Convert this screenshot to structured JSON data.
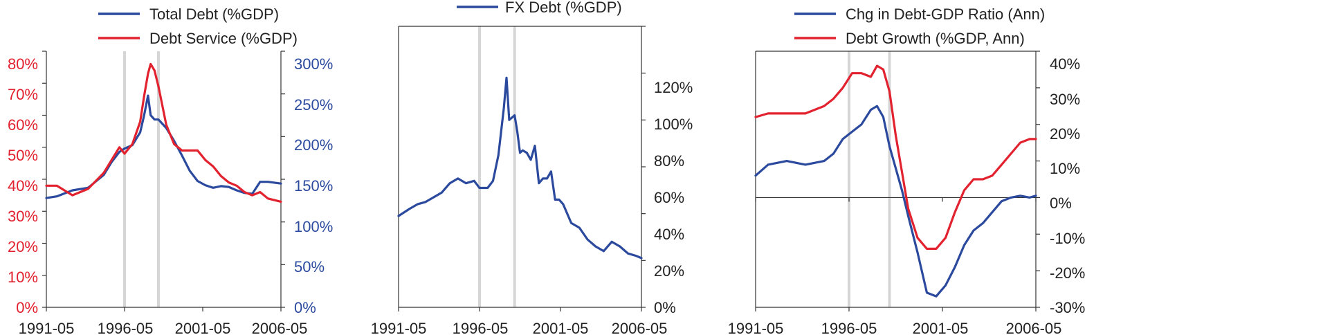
{
  "colors": {
    "blue": "#2B4A9E",
    "red": "#E2222E",
    "recession": "#D6D6D6",
    "axis": "#333333",
    "text": "#222222"
  },
  "chart_data": [
    {
      "type": "line",
      "title": "",
      "x_ticks": [
        "1991-05",
        "1996-05",
        "2001-05",
        "2006-05"
      ],
      "xlim": [
        "1991-05",
        "2006-05"
      ],
      "recession_bands": [
        "1996-05",
        "1998-07"
      ],
      "left_axis": {
        "ylim": [
          0,
          80
        ],
        "ticks": [
          "0%",
          "10%",
          "20%",
          "30%",
          "40%",
          "50%",
          "60%",
          "70%",
          "80%"
        ],
        "color": "#E2222E"
      },
      "right_axis": {
        "ylim": [
          0,
          300
        ],
        "ticks": [
          "0%",
          "50%",
          "100%",
          "150%",
          "200%",
          "250%",
          "300%"
        ],
        "color": "#2B4A9E"
      },
      "legend": {
        "placement": "top"
      },
      "series": [
        {
          "name": "Total Debt (%GDP)",
          "axis": "right",
          "color": "#2B4A9E",
          "x": [
            "1991-05",
            "1992-01",
            "1993-01",
            "1994-01",
            "1995-01",
            "1995-07",
            "1996-01",
            "1996-05",
            "1996-11",
            "1997-05",
            "1997-08",
            "1997-11",
            "1998-01",
            "1998-04",
            "1998-07",
            "1999-01",
            "1999-07",
            "2000-01",
            "2000-07",
            "2001-01",
            "2001-07",
            "2002-01",
            "2002-07",
            "2003-01",
            "2003-07",
            "2004-01",
            "2004-07",
            "2005-01",
            "2005-07",
            "2006-05"
          ],
          "y": [
            128,
            130,
            137,
            140,
            155,
            170,
            182,
            186,
            190,
            205,
            225,
            248,
            225,
            220,
            220,
            210,
            195,
            178,
            160,
            148,
            143,
            140,
            142,
            141,
            137,
            134,
            133,
            147,
            147,
            145
          ]
        },
        {
          "name": "Debt Service (%GDP)",
          "axis": "left",
          "color": "#E2222E",
          "x": [
            "1991-05",
            "1992-01",
            "1993-01",
            "1994-01",
            "1995-01",
            "1995-07",
            "1996-01",
            "1996-05",
            "1996-11",
            "1997-05",
            "1997-08",
            "1997-11",
            "1998-01",
            "1998-04",
            "1998-07",
            "1999-01",
            "1999-07",
            "2000-01",
            "2000-07",
            "2001-01",
            "2001-07",
            "2002-01",
            "2002-07",
            "2003-01",
            "2003-07",
            "2004-01",
            "2004-07",
            "2005-01",
            "2005-07",
            "2006-05"
          ],
          "y": [
            38,
            38,
            35,
            37,
            42,
            46,
            50,
            48,
            51,
            58,
            66,
            73,
            76,
            74,
            69,
            57,
            51,
            49,
            49,
            49,
            46,
            44,
            41,
            39,
            38,
            36,
            35,
            36,
            34,
            33
          ]
        }
      ]
    },
    {
      "type": "line",
      "title": "",
      "x_ticks": [
        "1991-05",
        "1996-05",
        "2001-05",
        "2006-05"
      ],
      "xlim": [
        "1991-05",
        "2006-05"
      ],
      "recession_bands": [
        "1996-05",
        "1998-07"
      ],
      "right_axis": {
        "ylim": [
          0,
          120
        ],
        "ticks": [
          "0%",
          "20%",
          "40%",
          "60%",
          "80%",
          "100%",
          "120%"
        ]
      },
      "legend": {
        "placement": "top"
      },
      "series": [
        {
          "name": "FX Debt (%GDP)",
          "axis": "right",
          "color": "#2B4A9E",
          "x": [
            "1991-05",
            "1992-01",
            "1992-07",
            "1993-01",
            "1993-07",
            "1994-01",
            "1994-07",
            "1995-01",
            "1995-07",
            "1996-01",
            "1996-05",
            "1996-11",
            "1997-03",
            "1997-07",
            "1997-11",
            "1998-01",
            "1998-03",
            "1998-05",
            "1998-07",
            "1998-09",
            "1998-11",
            "1999-01",
            "1999-04",
            "1999-07",
            "1999-10",
            "2000-01",
            "2000-04",
            "2000-07",
            "2000-10",
            "2001-01",
            "2001-04",
            "2001-07",
            "2002-01",
            "2002-07",
            "2003-01",
            "2003-07",
            "2004-01",
            "2004-07",
            "2005-01",
            "2005-07",
            "2006-01",
            "2006-05"
          ],
          "y": [
            39,
            42,
            44,
            45,
            47,
            49,
            53,
            55,
            53,
            54,
            51,
            51,
            54,
            65,
            85,
            98,
            80,
            81,
            82,
            75,
            66,
            67,
            66,
            63,
            69,
            53,
            55,
            55,
            58,
            46,
            46,
            44,
            36,
            34,
            29,
            26,
            24,
            28,
            26,
            23,
            22,
            21
          ]
        }
      ]
    },
    {
      "type": "line",
      "title": "",
      "x_ticks": [
        "1991-05",
        "1996-05",
        "2001-05",
        "2006-05"
      ],
      "xlim": [
        "1991-05",
        "2006-05"
      ],
      "recession_bands": [
        "1996-05",
        "1998-07"
      ],
      "right_axis": {
        "ylim": [
          -30,
          40
        ],
        "ticks": [
          "-30%",
          "-20%",
          "-10%",
          "0%",
          "10%",
          "20%",
          "30%",
          "40%"
        ]
      },
      "zero_line": true,
      "legend": {
        "placement": "top"
      },
      "series": [
        {
          "name": "Chg in Debt-GDP Ratio (Ann)",
          "axis": "right",
          "color": "#2B4A9E",
          "x": [
            "1991-05",
            "1992-01",
            "1993-01",
            "1994-01",
            "1995-01",
            "1995-07",
            "1996-01",
            "1996-07",
            "1997-01",
            "1997-07",
            "1997-11",
            "1998-03",
            "1998-07",
            "1998-11",
            "1999-03",
            "1999-07",
            "2000-01",
            "2000-07",
            "2001-01",
            "2001-07",
            "2002-01",
            "2002-07",
            "2003-01",
            "2003-07",
            "2004-01",
            "2004-07",
            "2005-01",
            "2005-07",
            "2006-01",
            "2006-05"
          ],
          "y": [
            6,
            9,
            10,
            9,
            10,
            12,
            16,
            18,
            20,
            24,
            25,
            22,
            14,
            8,
            2,
            -5,
            -15,
            -26,
            -27,
            -24,
            -19,
            -13,
            -9,
            -7,
            -4,
            -1,
            0,
            0.5,
            0,
            0.5
          ]
        },
        {
          "name": "Debt Growth (%GDP, Ann)",
          "axis": "right",
          "color": "#E2222E",
          "x": [
            "1991-05",
            "1992-01",
            "1993-01",
            "1994-01",
            "1995-01",
            "1995-07",
            "1996-01",
            "1996-07",
            "1997-01",
            "1997-07",
            "1997-11",
            "1998-03",
            "1998-07",
            "1998-11",
            "1999-03",
            "1999-07",
            "2000-01",
            "2000-07",
            "2001-01",
            "2001-07",
            "2002-01",
            "2002-07",
            "2003-01",
            "2003-07",
            "2004-01",
            "2004-07",
            "2005-01",
            "2005-07",
            "2006-01",
            "2006-05"
          ],
          "y": [
            22,
            23,
            23,
            23,
            25,
            27,
            30,
            34,
            34,
            33,
            36,
            35,
            29,
            17,
            7,
            -3,
            -11,
            -14,
            -14,
            -11,
            -4,
            2,
            5,
            5,
            6,
            9,
            12,
            15,
            16,
            16
          ]
        }
      ]
    }
  ]
}
